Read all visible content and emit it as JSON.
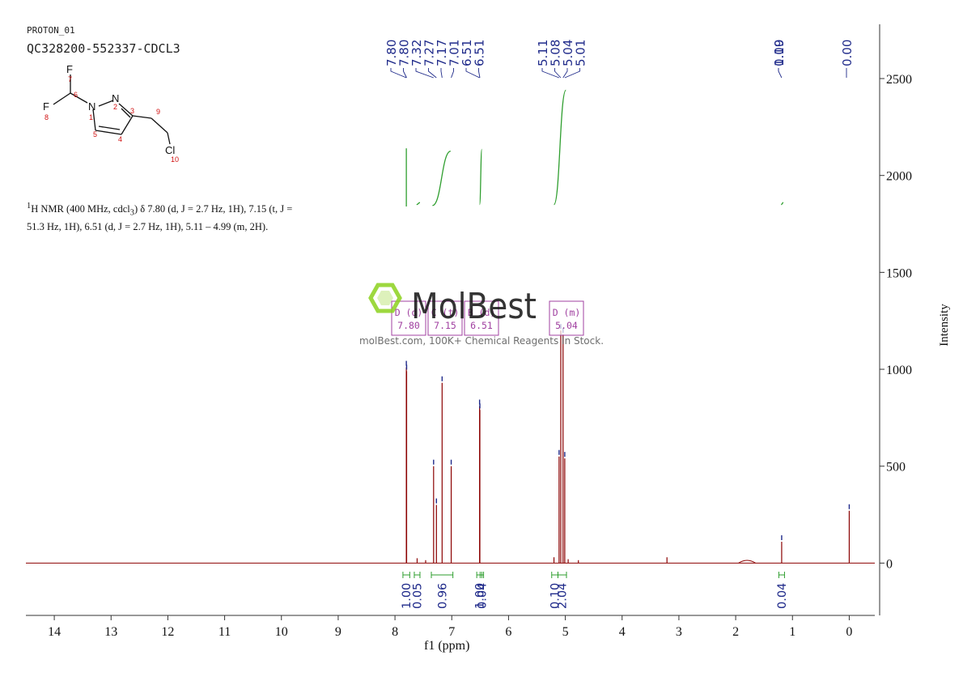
{
  "header": {
    "sample_id": "PROTON_01",
    "sample_code": "QC328200-552337-CDCL3"
  },
  "structure": {
    "atoms": {
      "F_top": "F",
      "F_left": "F",
      "N1": "N",
      "N2": "N",
      "Cl": "Cl"
    },
    "numbers": [
      "7",
      "6",
      "8",
      "1",
      "2",
      "3",
      "9",
      "5",
      "4",
      "10"
    ]
  },
  "description": {
    "prefix": "H NMR (400 MHz, cdcl",
    "sup": "1",
    "sub": "3",
    "text": ") δ 7.80 (d, J = 2.7 Hz, 1H), 7.15 (t, J = 51.3 Hz, 1H), 6.51 (d, J = 2.7 Hz, 1H), 5.11 – 4.99 (m, 2H)."
  },
  "watermark": {
    "brand": "MolBest",
    "tagline": "molBest.com, 100K+ Chemical Reagents In Stock."
  },
  "colors": {
    "spectrum": "#8b0000",
    "integral": "#2e9e2e",
    "peak_label": "#1f2a8a",
    "multiplet_box": "#a040a0",
    "logo_green": "#8cd21e",
    "axis": "#333333"
  },
  "chart_data": {
    "type": "line",
    "title": "",
    "xlabel": "f1 (ppm)",
    "ylabel": "Intensity",
    "xlim": [
      14.5,
      -0.45
    ],
    "ylim": [
      -270,
      2780
    ],
    "x_ticks": [
      14,
      13,
      12,
      11,
      10,
      9,
      8,
      7,
      6,
      5,
      4,
      3,
      2,
      1,
      0
    ],
    "y_ticks": [
      0,
      500,
      1000,
      1500,
      2000,
      2500
    ],
    "peaks": [
      {
        "ppm": 7.8,
        "height": 1010
      },
      {
        "ppm": 7.795,
        "height": 990
      },
      {
        "ppm": 7.61,
        "height": 25
      },
      {
        "ppm": 7.46,
        "height": 15
      },
      {
        "ppm": 7.32,
        "height": 500
      },
      {
        "ppm": 7.27,
        "height": 300
      },
      {
        "ppm": 7.17,
        "height": 930
      },
      {
        "ppm": 7.01,
        "height": 500
      },
      {
        "ppm": 6.51,
        "height": 810
      },
      {
        "ppm": 6.505,
        "height": 790
      },
      {
        "ppm": 5.2,
        "height": 30
      },
      {
        "ppm": 5.11,
        "height": 550
      },
      {
        "ppm": 5.08,
        "height": 1200
      },
      {
        "ppm": 5.04,
        "height": 1180
      },
      {
        "ppm": 5.01,
        "height": 540
      },
      {
        "ppm": 4.95,
        "height": 20
      },
      {
        "ppm": 4.77,
        "height": 15
      },
      {
        "ppm": 3.21,
        "height": 30
      },
      {
        "ppm": 1.19,
        "height": 110
      },
      {
        "ppm": 0.0,
        "height": 270
      }
    ],
    "peak_labels": {
      "group1": [
        "7.80",
        "7.80",
        "7.32",
        "7.27",
        "7.17",
        "7.01",
        "6.51",
        "6.51"
      ],
      "group2": [
        "5.11",
        "5.08",
        "5.04",
        "5.01"
      ],
      "single": [
        "1.19",
        "0.00"
      ]
    },
    "multiplets": [
      {
        "type": "D (d)",
        "shift": "7.80"
      },
      {
        "type": "C (t)",
        "shift": "7.15"
      },
      {
        "type": "B (d)",
        "shift": "6.51"
      },
      {
        "type": "D (m)",
        "shift": "5.04"
      }
    ],
    "integrals": [
      {
        "from": 7.86,
        "to": 7.74,
        "value": "1.00"
      },
      {
        "from": 7.66,
        "to": 7.56,
        "value": "0.05"
      },
      {
        "from": 7.36,
        "to": 6.98,
        "value": "0.96"
      },
      {
        "from": 6.56,
        "to": 6.47,
        "value": "1.00"
      },
      {
        "from": 6.5,
        "to": 6.44,
        "value": "0.04"
      },
      {
        "from": 5.24,
        "to": 5.13,
        "value": "0.10"
      },
      {
        "from": 5.13,
        "to": 4.98,
        "value": "2.04"
      },
      {
        "from": 1.24,
        "to": 1.14,
        "value": "0.04"
      }
    ],
    "integral_curves": [
      {
        "from": 7.8,
        "to": 7.8,
        "start": 1840,
        "end": 2140
      },
      {
        "from": 7.62,
        "to": 7.56,
        "start": 1850,
        "end": 1860
      },
      {
        "from": 7.34,
        "to": 7.02,
        "start": 1845,
        "end": 2125
      },
      {
        "from": 6.51,
        "to": 6.47,
        "start": 1850,
        "end": 2135
      },
      {
        "from": 5.2,
        "to": 4.99,
        "start": 1850,
        "end": 2440
      },
      {
        "from": 1.2,
        "to": 1.16,
        "start": 1850,
        "end": 1860
      }
    ]
  }
}
